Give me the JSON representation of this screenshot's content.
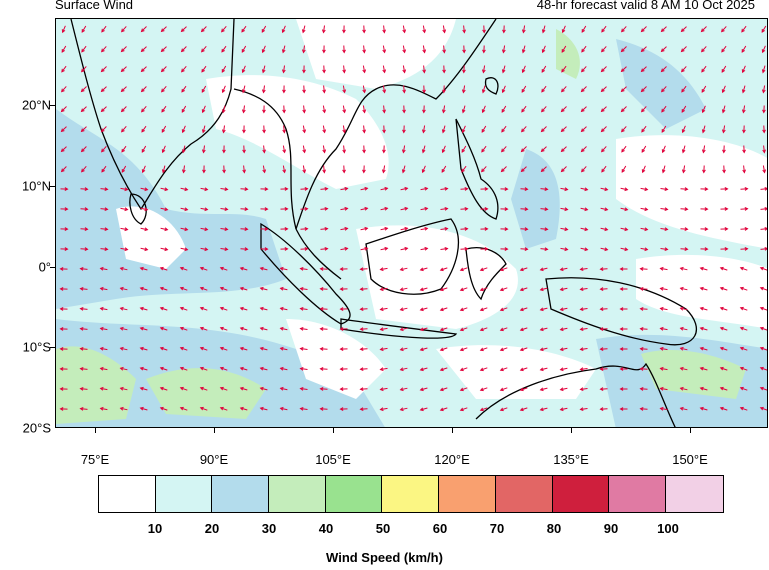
{
  "header": {
    "title": "Surface Wind",
    "forecast": "48-hr forecast valid 8 AM 10 Oct 2025"
  },
  "map": {
    "lat_labels": [
      "20°N",
      "10°N",
      "0°",
      "10°S",
      "20°S"
    ],
    "lon_labels": [
      "75°E",
      "90°E",
      "105°E",
      "120°E",
      "135°E",
      "150°E"
    ],
    "arrow_color": "#e0003a",
    "coastline_color": "#000000"
  },
  "legend": {
    "title": "Wind Speed (km/h)",
    "tick_labels": [
      "10",
      "20",
      "30",
      "40",
      "50",
      "60",
      "70",
      "80",
      "90",
      "100"
    ],
    "colors": [
      "#ffffff",
      "#d4f5f3",
      "#b3dcec",
      "#c4edbb",
      "#99e28f",
      "#fbf683",
      "#f9a06f",
      "#e26665",
      "#cf1f3d",
      "#e07aa3",
      "#f2d0e6"
    ]
  }
}
